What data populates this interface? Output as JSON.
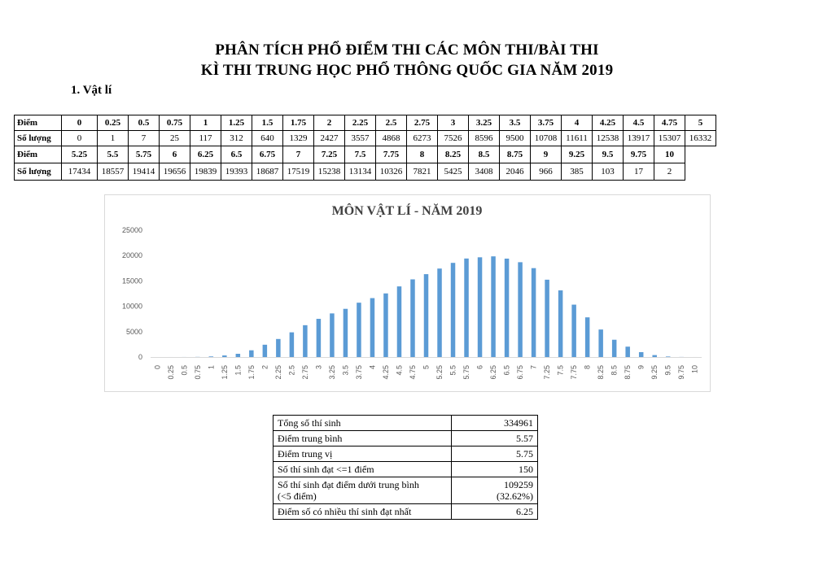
{
  "title_line1": "PHÂN TÍCH PHỔ ĐIỂM THI CÁC MÔN THI/BÀI THI",
  "title_line2": "KÌ THI TRUNG HỌC PHỔ THÔNG QUỐC GIA NĂM 2019",
  "section": "1.  Vật lí",
  "score_table": {
    "score_label": "Điểm",
    "count_label": "Số lượng",
    "row1_scores": [
      "0",
      "0.25",
      "0.5",
      "0.75",
      "1",
      "1.25",
      "1.5",
      "1.75",
      "2",
      "2.25",
      "2.5",
      "2.75",
      "3",
      "3.25",
      "3.5",
      "3.75",
      "4",
      "4.25",
      "4.5",
      "4.75",
      "5"
    ],
    "row1_counts": [
      "0",
      "1",
      "7",
      "25",
      "117",
      "312",
      "640",
      "1329",
      "2427",
      "3557",
      "4868",
      "6273",
      "7526",
      "8596",
      "9500",
      "10708",
      "11611",
      "12538",
      "13917",
      "15307",
      "16332"
    ],
    "row2_scores": [
      "5.25",
      "5.5",
      "5.75",
      "6",
      "6.25",
      "6.5",
      "6.75",
      "7",
      "7.25",
      "7.5",
      "7.75",
      "8",
      "8.25",
      "8.5",
      "8.75",
      "9",
      "9.25",
      "9.5",
      "9.75",
      "10"
    ],
    "row2_counts": [
      "17434",
      "18557",
      "19414",
      "19656",
      "19839",
      "19393",
      "18687",
      "17519",
      "15238",
      "13134",
      "10326",
      "7821",
      "5425",
      "3408",
      "2046",
      "966",
      "385",
      "103",
      "17",
      "2"
    ]
  },
  "chart_data": {
    "type": "bar",
    "title": "MÔN VẬT LÍ - NĂM 2019",
    "categories": [
      "0",
      "0.25",
      "0.5",
      "0.75",
      "1",
      "1.25",
      "1.5",
      "1.75",
      "2",
      "2.25",
      "2.5",
      "2.75",
      "3",
      "3.25",
      "3.5",
      "3.75",
      "4",
      "4.25",
      "4.5",
      "4.75",
      "5",
      "5.25",
      "5.5",
      "5.75",
      "6",
      "6.25",
      "6.5",
      "6.75",
      "7",
      "7.25",
      "7.5",
      "7.75",
      "8",
      "8.25",
      "8.5",
      "8.75",
      "9",
      "9.25",
      "9.5",
      "9.75",
      "10"
    ],
    "values": [
      0,
      1,
      7,
      25,
      117,
      312,
      640,
      1329,
      2427,
      3557,
      4868,
      6273,
      7526,
      8596,
      9500,
      10708,
      11611,
      12538,
      13917,
      15307,
      16332,
      17434,
      18557,
      19414,
      19656,
      19839,
      19393,
      18687,
      17519,
      15238,
      13134,
      10326,
      7821,
      5425,
      3408,
      2046,
      966,
      385,
      103,
      17,
      2
    ],
    "ylim": [
      0,
      25000
    ],
    "yticks": [
      0,
      5000,
      10000,
      15000,
      20000,
      25000
    ],
    "grid": false,
    "bar_color": "#5b9bd5",
    "axis_color": "#d9d9d9",
    "legend": "none"
  },
  "stats": [
    {
      "label": "Tổng số thí sinh",
      "value": "334961"
    },
    {
      "label": "Điểm trung bình",
      "value": "5.57"
    },
    {
      "label": "Điểm trung vị",
      "value": "5.75"
    },
    {
      "label": "Số thí sinh đạt <=1 điểm",
      "value": "150"
    },
    {
      "label": "Số thí sinh đạt điểm dưới trung bình",
      "label2": "(<5 điểm)",
      "value": "109259",
      "value2": "(32.62%)"
    },
    {
      "label": "Điểm số có nhiều thí sinh đạt nhất",
      "value": "6.25"
    }
  ]
}
